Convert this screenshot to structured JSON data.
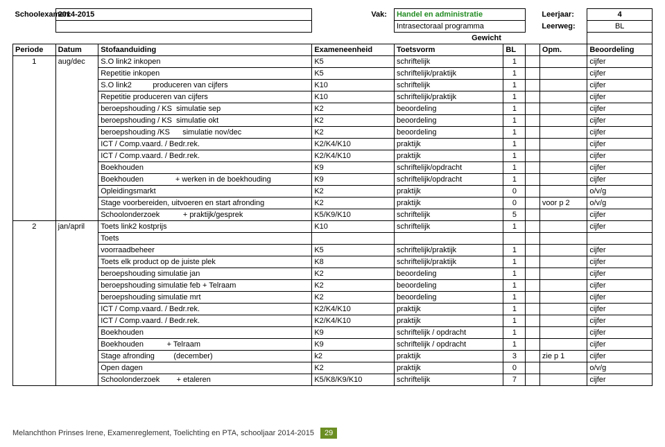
{
  "hdr": {
    "schoolexamen_lbl": "Schoolexamen:",
    "schoolexamen_val": "2014-2015",
    "vak_lbl": "Vak:",
    "vak_val": "Handel en administratie",
    "leerjaar_lbl": "Leerjaar:",
    "leerjaar_val": "4",
    "sub": "Intrasectoraal programma",
    "leerweg_lbl": "Leerweg:",
    "leerweg_val": "BL",
    "gewicht_lbl": "Gewicht"
  },
  "cols": {
    "periode": "Periode",
    "datum": "Datum",
    "stof": "Stofaanduiding",
    "exameneenheid": "Exameneenheid",
    "toetsvorm": "Toetsvorm",
    "bl": "BL",
    "opm": "Opm.",
    "beoordeling": "Beoordeling"
  },
  "p": {
    "p1": {
      "periode": "1",
      "datum": "aug/dec",
      "rows": [
        {
          "s": "S.O link2 inkopen",
          "e": "K5",
          "t": "schriftelijk",
          "b": "1",
          "o": "",
          "r": "cijfer"
        },
        {
          "s": "Repetitie inkopen",
          "e": "K5",
          "t": "schriftelijk/praktijk",
          "b": "1",
          "o": "",
          "r": "cijfer"
        },
        {
          "s": "S.O link2          produceren van cijfers",
          "e": "K10",
          "t": "schriftelijk",
          "b": "1",
          "o": "",
          "r": "cijfer"
        },
        {
          "s": "Repetitie produceren van cijfers",
          "e": "K10",
          "t": "schriftelijk/praktijk",
          "b": "1",
          "o": "",
          "r": "cijfer"
        },
        {
          "s": "beroepshouding / KS  simulatie sep",
          "e": "K2",
          "t": "beoordeling",
          "b": "1",
          "o": "",
          "r": "cijfer"
        },
        {
          "s": "beroepshouding / KS  simulatie okt",
          "e": "K2",
          "t": "beoordeling",
          "b": "1",
          "o": "",
          "r": "cijfer"
        },
        {
          "s": "beroepshouding /KS      simulatie nov/dec",
          "e": "K2",
          "t": "beoordeling",
          "b": "1",
          "o": "",
          "r": "cijfer"
        },
        {
          "s": "ICT / Comp.vaard. / Bedr.rek.",
          "e": "K2/K4/K10",
          "t": "praktijk",
          "b": "1",
          "o": "",
          "r": "cijfer"
        },
        {
          "s": "ICT / Comp.vaard. / Bedr.rek.",
          "e": "K2/K4/K10",
          "t": "praktijk",
          "b": "1",
          "o": "",
          "r": "cijfer"
        },
        {
          "s": "Boekhouden",
          "e": "K9",
          "t": "schriftelijk/opdracht",
          "b": "1",
          "o": "",
          "r": "cijfer"
        },
        {
          "s": "Boekhouden               + werken in de boekhouding",
          "e": "K9",
          "t": "schriftelijk/opdracht",
          "b": "1",
          "o": "",
          "r": "cijfer"
        },
        {
          "s": "Opleidingsmarkt",
          "e": "K2",
          "t": "praktijk",
          "b": "0",
          "o": "",
          "r": "o/v/g"
        },
        {
          "s": "Stage voorbereiden, uitvoeren en start afronding",
          "e": "K2",
          "t": "praktijk",
          "b": "0",
          "o": "voor p 2",
          "r": "o/v/g"
        },
        {
          "s": "Schoolonderzoek           + praktijk/gesprek",
          "e": "K5/K9/K10",
          "t": "schriftelijk",
          "b": "5",
          "o": "",
          "r": "cijfer"
        }
      ]
    },
    "p2": {
      "periode": "2",
      "datum": "jan/april",
      "rows": [
        {
          "s": "Toets link2 kostprijs",
          "e": "K10",
          "t": "schriftelijk",
          "b": "1",
          "o": "",
          "r": "cijfer"
        },
        {
          "s": "Toets",
          "e": "",
          "t": "",
          "b": "",
          "o": "",
          "r": ""
        },
        {
          "s": "voorraadbeheer",
          "e": "K5",
          "t": "schriftelijk/praktijk",
          "b": "1",
          "o": "",
          "r": "cijfer"
        },
        {
          "s": "Toets elk product op de juiste plek",
          "e": "K8",
          "t": "schriftelijk/praktijk",
          "b": "1",
          "o": "",
          "r": "cijfer"
        },
        {
          "s": "beroepshouding simulatie jan",
          "e": "K2",
          "t": "beoordeling",
          "b": "1",
          "o": "",
          "r": "cijfer"
        },
        {
          "s": "beroepshouding simulatie feb + Telraam",
          "e": "K2",
          "t": "beoordeling",
          "b": "1",
          "o": "",
          "r": "cijfer"
        },
        {
          "s": "beroepshouding simulatie mrt",
          "e": "K2",
          "t": "beoordeling",
          "b": "1",
          "o": "",
          "r": "cijfer"
        },
        {
          "s": "ICT / Comp.vaard. / Bedr.rek.",
          "e": "K2/K4/K10",
          "t": "praktijk",
          "b": "1",
          "o": "",
          "r": "cijfer"
        },
        {
          "s": "ICT / Comp.vaard. / Bedr.rek.",
          "e": "K2/K4/K10",
          "t": "praktijk",
          "b": "1",
          "o": "",
          "r": "cijfer"
        },
        {
          "s": "Boekhouden",
          "e": "K9",
          "t": "schriftelijk / opdracht",
          "b": "1",
          "o": "",
          "r": "cijfer"
        },
        {
          "s": "Boekhouden           + Telraam",
          "e": "K9",
          "t": "schriftelijk / opdracht",
          "b": "1",
          "o": "",
          "r": "cijfer"
        },
        {
          "s": "Stage afronding         (december)",
          "e": "k2",
          "t": "praktijk",
          "b": "3",
          "o": "zie p 1",
          "r": "cijfer"
        },
        {
          "s": "Open dagen",
          "e": "K2",
          "t": "praktijk",
          "b": "0",
          "o": "",
          "r": "o/v/g"
        },
        {
          "s": "Schoolonderzoek        + etaleren",
          "e": "K5/K8/K9/K10",
          "t": "schriftelijk",
          "b": "7",
          "o": "",
          "r": "cijfer"
        }
      ]
    }
  },
  "footer": {
    "text": "Melanchthon Prinses Irene, Examenreglement, Toelichting en PTA, schooljaar 2014-2015",
    "page": "29"
  }
}
